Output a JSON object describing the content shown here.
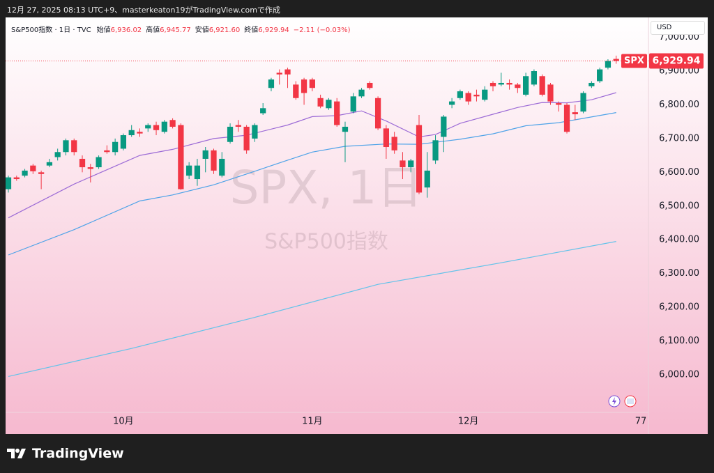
{
  "caption": "12月 27, 2025 08:13 UTC+9、masterkeaton19がTradingView.comで作成",
  "chart_data": {
    "type": "candlestick",
    "legend_title": "S&P500指数 · 1日 · TVC",
    "ohlc_header": [
      {
        "label": "始値",
        "value": "6,936.02"
      },
      {
        "label": "高値",
        "value": "6,945.77"
      },
      {
        "label": "安値",
        "value": "6,921.60"
      },
      {
        "label": "終値",
        "value": "6,929.94"
      }
    ],
    "change_text": "−2.11 (−0.03%)",
    "currency": "USD",
    "watermark": "SPX, 1日",
    "watermark_subtitle": "S&P500指数",
    "last_label": {
      "symbol": "SPX",
      "price": "6,929.94"
    },
    "up_color": "#089981",
    "down_color": "#f23645",
    "open": [
      6550,
      6585,
      6590,
      6620,
      6600,
      6620,
      6645,
      6660,
      6695,
      6640,
      6615,
      6615,
      6665,
      6660,
      6670,
      6710,
      6720,
      6730,
      6740,
      6720,
      6755,
      6740,
      6590,
      6580,
      6640,
      6665,
      6590,
      6690,
      6740,
      6735,
      6700,
      6775,
      6850,
      6895,
      6905,
      6860,
      6875,
      6875,
      6820,
      6790,
      6810,
      6720,
      6780,
      6825,
      6865,
      6820,
      6730,
      6705,
      6635,
      6615,
      6740,
      6555,
      6635,
      6705,
      6800,
      6820,
      6835,
      6830,
      6815,
      6865,
      6860,
      6865,
      6860,
      6830,
      6860,
      6885,
      6860,
      6805,
      6800,
      6778,
      6780,
      6855,
      6870,
      6910,
      6936.02
    ],
    "high": [
      6590,
      6590,
      6610,
      6625,
      6605,
      6640,
      6670,
      6700,
      6700,
      6650,
      6625,
      6650,
      6680,
      6700,
      6715,
      6740,
      6730,
      6745,
      6750,
      6755,
      6760,
      6745,
      6630,
      6640,
      6675,
      6670,
      6660,
      6745,
      6755,
      6740,
      6745,
      6805,
      6880,
      6905,
      6910,
      6870,
      6880,
      6880,
      6830,
      6820,
      6820,
      6750,
      6835,
      6850,
      6870,
      6825,
      6740,
      6720,
      6660,
      6640,
      6770,
      6660,
      6710,
      6770,
      6820,
      6845,
      6840,
      6845,
      6855,
      6870,
      6895,
      6875,
      6865,
      6895,
      6905,
      6890,
      6865,
      6810,
      6805,
      6800,
      6840,
      6870,
      6910,
      6935,
      6945.77
    ],
    "low": [
      6540,
      6575,
      6585,
      6595,
      6550,
      6615,
      6635,
      6650,
      6650,
      6600,
      6570,
      6610,
      6655,
      6650,
      6665,
      6705,
      6705,
      6720,
      6710,
      6715,
      6730,
      6548,
      6580,
      6560,
      6600,
      6595,
      6585,
      6685,
      6720,
      6655,
      6690,
      6770,
      6840,
      6860,
      6850,
      6815,
      6800,
      6840,
      6790,
      6785,
      6735,
      6630,
      6775,
      6820,
      6845,
      6725,
      6640,
      6655,
      6580,
      6600,
      6535,
      6525,
      6625,
      6660,
      6790,
      6815,
      6800,
      6810,
      6810,
      6840,
      6855,
      6845,
      6835,
      6825,
      6855,
      6825,
      6800,
      6780,
      6715,
      6755,
      6775,
      6850,
      6865,
      6905,
      6921.6
    ],
    "close": [
      6585,
      6580,
      6605,
      6603,
      6595,
      6630,
      6660,
      6695,
      6660,
      6615,
      6610,
      6645,
      6660,
      6690,
      6710,
      6725,
      6715,
      6740,
      6725,
      6750,
      6735,
      6550,
      6620,
      6620,
      6665,
      6605,
      6640,
      6735,
      6735,
      6665,
      6740,
      6790,
      6875,
      6890,
      6890,
      6820,
      6835,
      6850,
      6795,
      6815,
      6740,
      6735,
      6825,
      6845,
      6850,
      6730,
      6675,
      6665,
      6615,
      6635,
      6540,
      6605,
      6695,
      6765,
      6810,
      6840,
      6810,
      6825,
      6845,
      6855,
      6865,
      6860,
      6850,
      6885,
      6900,
      6830,
      6810,
      6800,
      6720,
      6772,
      6835,
      6865,
      6905,
      6930,
      6929.94
    ],
    "moving_averages": [
      {
        "color": "#9c6bd6",
        "x": [
          0,
          8,
          16,
          20,
          25,
          29,
          34,
          37,
          40,
          43,
          46,
          50,
          52,
          55,
          59,
          62,
          65,
          68,
          71,
          74
        ],
        "values": [
          6465,
          6565,
          6650,
          6668,
          6700,
          6710,
          6740,
          6765,
          6768,
          6782,
          6752,
          6705,
          6712,
          6745,
          6772,
          6792,
          6807,
          6806,
          6815,
          6836
        ]
      },
      {
        "color": "#4ea3e8",
        "x": [
          0,
          8,
          16,
          20,
          25,
          29,
          34,
          37,
          41,
          46,
          50,
          55,
          59,
          63,
          67,
          74
        ],
        "values": [
          6355,
          6430,
          6515,
          6533,
          6563,
          6595,
          6636,
          6660,
          6677,
          6684,
          6683,
          6698,
          6714,
          6738,
          6747,
          6777
        ]
      },
      {
        "color": "#62c3ea",
        "x": [
          0,
          15,
          30,
          45,
          60,
          74
        ],
        "values": [
          5995,
          6078,
          6170,
          6268,
          6332,
          6395
        ]
      }
    ],
    "xlim": [
      -0.34,
      77.93
    ],
    "xticks": [
      {
        "value": 14,
        "label": "10月"
      },
      {
        "value": 37,
        "label": "11月"
      },
      {
        "value": 56,
        "label": "12月"
      },
      77
    ],
    "ylim": [
      5888.5,
      7059
    ],
    "yticks": [
      {
        "value": 6000,
        "label": "6,000.00"
      },
      {
        "value": 6100,
        "label": "6,100.00"
      },
      {
        "value": 6200,
        "label": "6,200.00"
      },
      {
        "value": 6300,
        "label": "6,300.00"
      },
      {
        "value": 6400,
        "label": "6,400.00"
      },
      {
        "value": 6500,
        "label": "6,500.00"
      },
      {
        "value": 6600,
        "label": "6,600.00"
      },
      {
        "value": 6700,
        "label": "6,700.00"
      },
      {
        "value": 6800,
        "label": "6,800.00"
      },
      {
        "value": 6900,
        "label": "6,900.00"
      },
      {
        "value": 7000,
        "label": "7,000.00"
      }
    ],
    "grid": false
  },
  "footer": {
    "brand": "TradingView"
  }
}
